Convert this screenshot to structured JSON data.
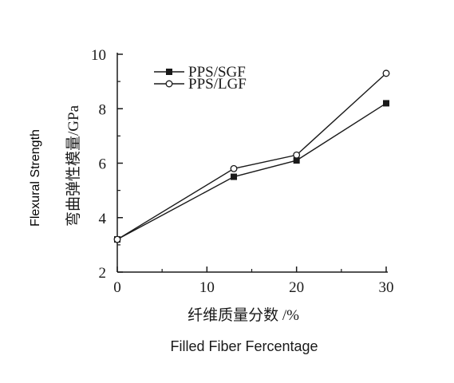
{
  "chart_data": {
    "type": "line",
    "x": [
      0,
      13,
      20,
      30
    ],
    "series": [
      {
        "name": "PPS/SGF",
        "marker": "filled-square",
        "color": "#1a1a1a",
        "values": [
          3.2,
          5.5,
          6.1,
          8.2
        ]
      },
      {
        "name": "PPS/LGF",
        "marker": "open-circle",
        "color": "#1a1a1a",
        "values": [
          3.2,
          5.8,
          6.3,
          9.3
        ]
      }
    ],
    "xlabel": "纤维质量分数 /%",
    "xlabel_translation": "Filled Fiber Fercentage",
    "ylabel": "弯曲弹性模量/GPa",
    "ylabel_translation": "Flexural Strength",
    "xlim": [
      0,
      30
    ],
    "ylim": [
      2,
      10
    ],
    "xticks": [
      0,
      10,
      20,
      30
    ],
    "yticks": [
      2,
      4,
      6,
      8,
      10
    ],
    "grid": false,
    "legend_position": "top-left"
  }
}
